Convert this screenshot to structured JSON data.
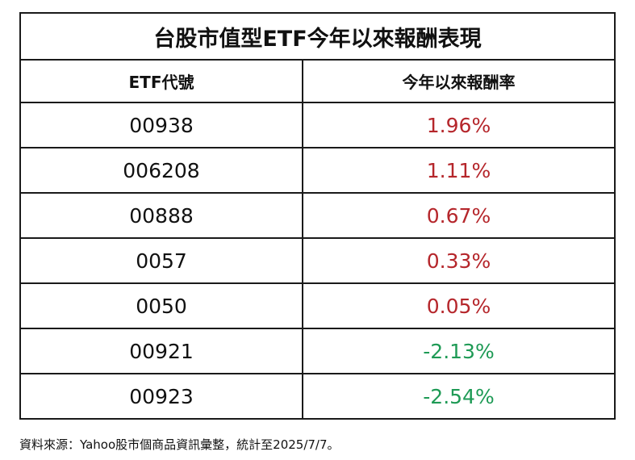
{
  "table": {
    "title": "台股市值型ETF今年以來報酬表現",
    "headers": {
      "code": "ETF代號",
      "return": "今年以來報酬率"
    },
    "rows": [
      {
        "code": "00938",
        "return": "1.96%",
        "trend": "positive"
      },
      {
        "code": "006208",
        "return": "1.11%",
        "trend": "positive"
      },
      {
        "code": "00888",
        "return": "0.67%",
        "trend": "positive"
      },
      {
        "code": "0057",
        "return": "0.33%",
        "trend": "positive"
      },
      {
        "code": "0050",
        "return": "0.05%",
        "trend": "positive"
      },
      {
        "code": "00921",
        "return": "-2.13%",
        "trend": "negative"
      },
      {
        "code": "00923",
        "return": "-2.54%",
        "trend": "negative"
      }
    ]
  },
  "colors": {
    "positive": "#b5262b",
    "negative": "#1e9a55",
    "border": "#1a1a1a"
  },
  "source_note": "資料來源：Yahoo股市個商品資訊彙整，統計至2025/7/7。"
}
